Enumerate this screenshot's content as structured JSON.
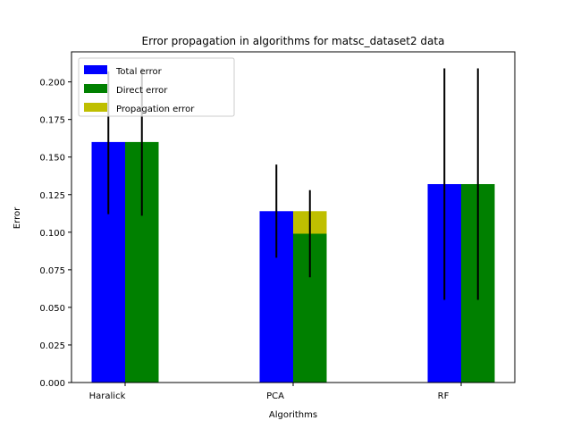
{
  "chart_data": {
    "type": "bar",
    "title": "Error propagation in algorithms for matsc_dataset2 data",
    "xlabel": "Algorithms",
    "ylabel": "Error",
    "categories": [
      "Haralick",
      "PCA",
      "RF"
    ],
    "ylim": [
      0,
      0.22
    ],
    "yticks": [
      0.0,
      0.025,
      0.05,
      0.075,
      0.1,
      0.125,
      0.15,
      0.175,
      0.2
    ],
    "ytick_labels": [
      "0.000",
      "0.025",
      "0.050",
      "0.075",
      "0.100",
      "0.125",
      "0.150",
      "0.175",
      "0.200"
    ],
    "grid": false,
    "legend_position": "top-left",
    "series": [
      {
        "name": "Total error",
        "color": "#0000ff",
        "values": [
          0.16,
          0.114,
          0.132
        ],
        "error_low": [
          0.112,
          0.083,
          0.055
        ],
        "error_high": [
          0.207,
          0.145,
          0.209
        ]
      },
      {
        "name": "Direct error",
        "color": "#008000",
        "values": [
          0.16,
          0.099,
          0.132
        ],
        "error_low": [
          0.111,
          0.07,
          0.055
        ],
        "error_high": [
          0.209,
          0.128,
          0.209
        ]
      },
      {
        "name": "Propagation error",
        "color": "#bfbf00",
        "values": [
          0.0,
          0.015,
          0.0
        ],
        "stacked_on": "Direct error"
      }
    ]
  }
}
